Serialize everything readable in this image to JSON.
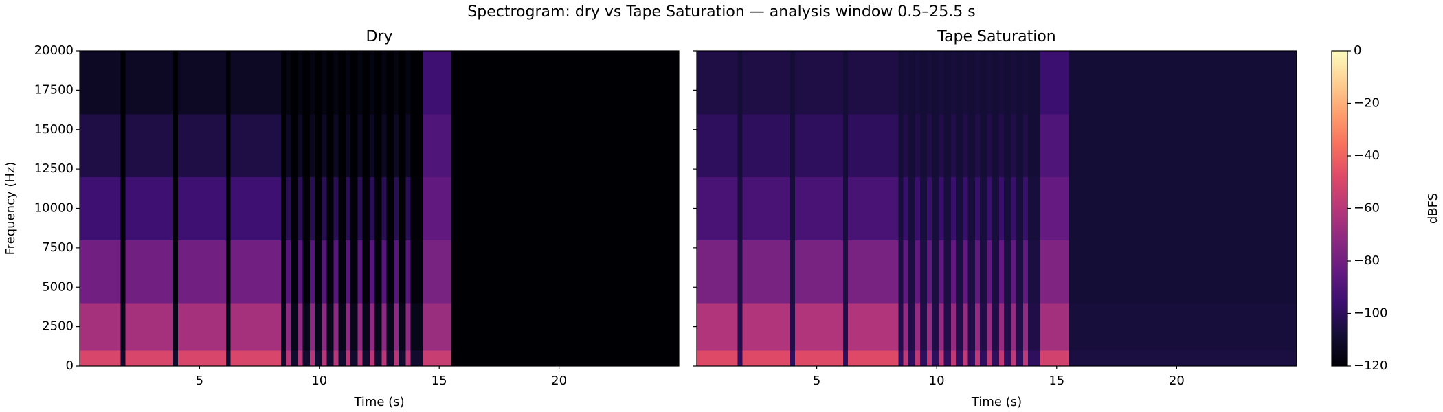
{
  "title": "Spectrogram: dry vs Tape Saturation — analysis window 0.5–25.5 s",
  "chart_data": [
    {
      "type": "heatmap",
      "title": "Dry",
      "xlabel": "Time (s)",
      "ylabel": "Frequency (Hz)",
      "xlim": [
        0,
        25
      ],
      "ylim": [
        0,
        20000
      ],
      "xticks": [
        5,
        10,
        15,
        20
      ],
      "yticks": [
        0,
        2500,
        5000,
        7500,
        10000,
        12500,
        15000,
        17500,
        20000
      ],
      "x_edges": [
        0,
        1.7,
        1.9,
        3.9,
        4.1,
        6.1,
        6.3,
        8.4,
        8.6,
        8.8,
        9.1,
        9.3,
        9.6,
        9.8,
        10.1,
        10.3,
        10.6,
        10.8,
        11.1,
        11.3,
        11.6,
        11.8,
        12.1,
        12.3,
        12.6,
        12.8,
        13.1,
        13.3,
        13.6,
        13.8,
        14.3,
        15.5,
        25
      ],
      "y_edges": [
        0,
        1000,
        4000,
        8000,
        12000,
        16000,
        20000
      ],
      "z": [
        [
          -50,
          -110,
          -50,
          -110,
          -50,
          -110,
          -50,
          -110,
          -60,
          -110,
          -60,
          -110,
          -60,
          -110,
          -60,
          -110,
          -60,
          -110,
          -60,
          -110,
          -60,
          -110,
          -60,
          -110,
          -60,
          -110,
          -60,
          -110,
          -60,
          -110,
          -55,
          -120
        ],
        [
          -65,
          -115,
          -65,
          -115,
          -65,
          -115,
          -65,
          -115,
          -72,
          -115,
          -72,
          -115,
          -72,
          -115,
          -72,
          -115,
          -72,
          -115,
          -72,
          -115,
          -72,
          -115,
          -72,
          -115,
          -72,
          -115,
          -72,
          -115,
          -72,
          -115,
          -68,
          -120
        ],
        [
          -80,
          -118,
          -80,
          -118,
          -80,
          -118,
          -80,
          -118,
          -88,
          -118,
          -88,
          -118,
          -88,
          -118,
          -88,
          -118,
          -88,
          -118,
          -88,
          -118,
          -88,
          -118,
          -88,
          -118,
          -88,
          -118,
          -88,
          -118,
          -88,
          -118,
          -78,
          -120
        ],
        [
          -95,
          -119,
          -95,
          -119,
          -95,
          -119,
          -95,
          -119,
          -102,
          -119,
          -102,
          -119,
          -102,
          -119,
          -102,
          -119,
          -102,
          -119,
          -102,
          -119,
          -102,
          -119,
          -102,
          -119,
          -102,
          -119,
          -102,
          -119,
          -102,
          -119,
          -85,
          -120
        ],
        [
          -105,
          -120,
          -105,
          -120,
          -105,
          -120,
          -105,
          -120,
          -112,
          -120,
          -112,
          -120,
          -112,
          -120,
          -112,
          -120,
          -112,
          -120,
          -112,
          -120,
          -112,
          -120,
          -112,
          -120,
          -112,
          -120,
          -112,
          -120,
          -112,
          -120,
          -90,
          -120
        ],
        [
          -112,
          -120,
          -112,
          -120,
          -112,
          -120,
          -112,
          -120,
          -117,
          -120,
          -117,
          -120,
          -117,
          -120,
          -117,
          -120,
          -117,
          -120,
          -117,
          -120,
          -117,
          -120,
          -117,
          -120,
          -117,
          -120,
          -117,
          -120,
          -117,
          -120,
          -95,
          -120
        ]
      ]
    },
    {
      "type": "heatmap",
      "title": "Tape Saturation",
      "xlabel": "Time (s)",
      "xlim": [
        0,
        25
      ],
      "ylim": [
        0,
        20000
      ],
      "xticks": [
        5,
        10,
        15,
        20
      ],
      "x_edges": [
        0,
        1.7,
        1.9,
        3.9,
        4.1,
        6.1,
        6.3,
        8.4,
        8.6,
        8.8,
        9.1,
        9.3,
        9.6,
        9.8,
        10.1,
        10.3,
        10.6,
        10.8,
        11.1,
        11.3,
        11.6,
        11.8,
        12.1,
        12.3,
        12.6,
        12.8,
        13.1,
        13.3,
        13.6,
        13.8,
        14.3,
        15.5,
        25
      ],
      "y_edges": [
        0,
        1000,
        4000,
        8000,
        12000,
        16000,
        20000
      ],
      "z": [
        [
          -48,
          -100,
          -48,
          -100,
          -48,
          -100,
          -48,
          -100,
          -58,
          -100,
          -58,
          -100,
          -58,
          -100,
          -58,
          -100,
          -58,
          -100,
          -58,
          -100,
          -58,
          -100,
          -58,
          -100,
          -58,
          -100,
          -58,
          -100,
          -58,
          -100,
          -52,
          -106
        ],
        [
          -62,
          -104,
          -62,
          -104,
          -62,
          -104,
          -62,
          -104,
          -70,
          -104,
          -70,
          -104,
          -70,
          -104,
          -70,
          -104,
          -70,
          -104,
          -70,
          -104,
          -70,
          -104,
          -70,
          -104,
          -70,
          -104,
          -70,
          -104,
          -70,
          -104,
          -66,
          -107
        ],
        [
          -78,
          -106,
          -78,
          -106,
          -78,
          -106,
          -78,
          -106,
          -85,
          -106,
          -85,
          -106,
          -85,
          -106,
          -85,
          -106,
          -85,
          -106,
          -85,
          -106,
          -85,
          -106,
          -85,
          -106,
          -85,
          -106,
          -85,
          -106,
          -85,
          -106,
          -76,
          -108
        ],
        [
          -92,
          -107,
          -92,
          -107,
          -92,
          -107,
          -92,
          -107,
          -97,
          -107,
          -97,
          -107,
          -97,
          -107,
          -97,
          -107,
          -97,
          -107,
          -97,
          -107,
          -97,
          -107,
          -97,
          -107,
          -97,
          -107,
          -97,
          -107,
          -97,
          -107,
          -84,
          -108
        ],
        [
          -100,
          -108,
          -100,
          -108,
          -100,
          -108,
          -100,
          -108,
          -104,
          -108,
          -104,
          -108,
          -104,
          -108,
          -104,
          -108,
          -104,
          -108,
          -104,
          -108,
          -104,
          -108,
          -104,
          -108,
          -104,
          -108,
          -104,
          -108,
          -104,
          -108,
          -90,
          -108
        ],
        [
          -105,
          -108,
          -105,
          -108,
          -105,
          -108,
          -105,
          -108,
          -107,
          -108,
          -107,
          -108,
          -107,
          -108,
          -107,
          -108,
          -107,
          -108,
          -107,
          -108,
          -107,
          -108,
          -107,
          -108,
          -107,
          -108,
          -107,
          -108,
          -107,
          -108,
          -96,
          -108
        ]
      ]
    }
  ],
  "colorbar": {
    "label": "dBFS",
    "colormap": "magma",
    "lim": [
      -120,
      0
    ],
    "ticks": [
      0,
      {
        "value": -20,
        "label": "−20"
      },
      {
        "value": -40,
        "label": "−40"
      },
      {
        "value": -60,
        "label": "−60"
      },
      {
        "value": -80,
        "label": "−80"
      },
      {
        "value": -100,
        "label": "−100"
      },
      {
        "value": -120,
        "label": "−120"
      }
    ]
  }
}
